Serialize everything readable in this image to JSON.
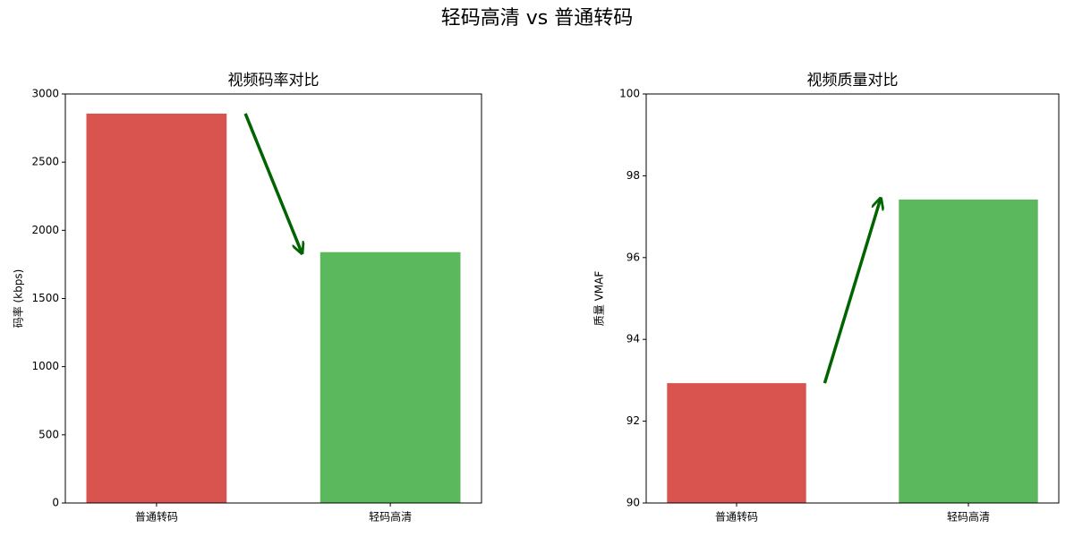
{
  "title": "轻码高清 vs 普通转码",
  "chart_data": [
    {
      "type": "bar",
      "title": "视频码率对比",
      "ylabel": "码率 (kbps)",
      "categories": [
        "普通转码",
        "轻码高清"
      ],
      "values": [
        2856,
        1840
      ],
      "colors": [
        "#d9534f",
        "#5cb85c"
      ],
      "arrow_color": "#006400",
      "ylim": [
        0,
        3000
      ],
      "yticks": [
        0,
        500,
        1000,
        1500,
        2000,
        2500,
        3000
      ]
    },
    {
      "type": "bar",
      "title": "视频质量对比",
      "ylabel": "质量 VMAF",
      "categories": [
        "普通转码",
        "轻码高清"
      ],
      "values": [
        92.93,
        97.42
      ],
      "colors": [
        "#d9534f",
        "#5cb85c"
      ],
      "arrow_color": "#006400",
      "ylim": [
        90,
        100
      ],
      "yticks": [
        90,
        92,
        94,
        96,
        98,
        100
      ]
    }
  ]
}
